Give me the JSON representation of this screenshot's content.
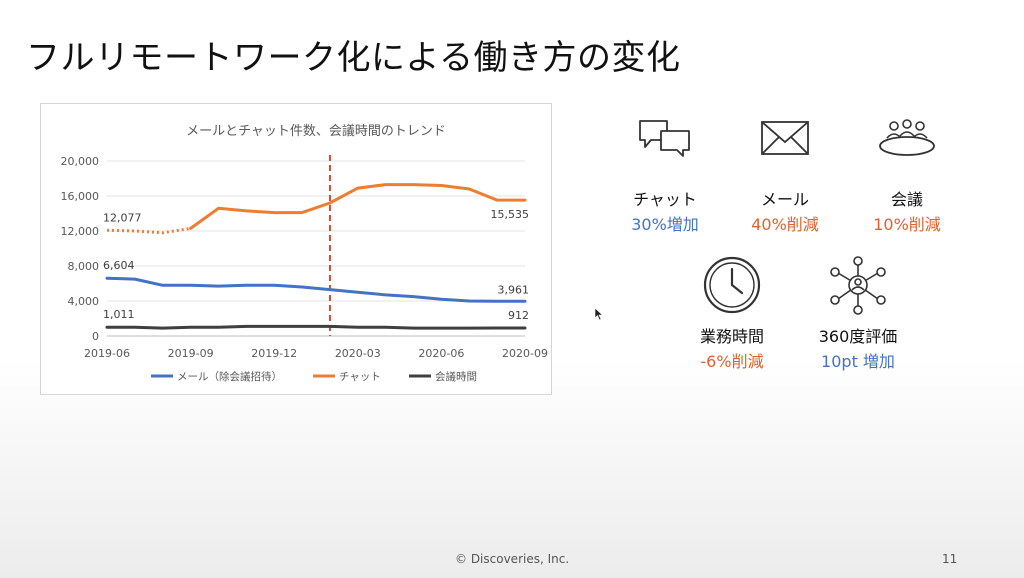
{
  "slide": {
    "title": "フルリモートワーク化による働き方の変化",
    "footer": "© Discoveries, Inc.",
    "page_number": "11"
  },
  "colors": {
    "mail": "#4472c4",
    "chat": "#ed7d31",
    "meeting": "#3f3f3f",
    "increase": "#4472c4",
    "decrease": "#e0622c",
    "marker_line": "#d9482b"
  },
  "chart_data": {
    "type": "line",
    "title": "メールとチャット件数、会議時間のトレンド",
    "x": [
      "2019-06",
      "2019-07",
      "2019-08",
      "2019-09",
      "2019-10",
      "2019-11",
      "2019-12",
      "2020-01",
      "2020-02",
      "2020-03",
      "2020-04",
      "2020-05",
      "2020-06",
      "2020-07",
      "2020-08",
      "2020-09"
    ],
    "x_tick_labels": [
      "2019-06",
      "2019-09",
      "2019-12",
      "2020-03",
      "2020-06",
      "2020-09"
    ],
    "ylim": [
      0,
      20000
    ],
    "y_ticks": [
      "0",
      "4,000",
      "8,000",
      "12,000",
      "16,000",
      "20,000"
    ],
    "y_tick_values": [
      0,
      4000,
      8000,
      12000,
      16000,
      20000
    ],
    "grid": true,
    "legend_position": "bottom",
    "vertical_marker_x": "2020-02",
    "series": [
      {
        "name": "メール（除会議招待）",
        "color": "#4472c4",
        "values": [
          6604,
          6500,
          5800,
          5800,
          5700,
          5800,
          5800,
          5600,
          5300,
          5000,
          4700,
          4500,
          4200,
          4000,
          3961,
          3961
        ],
        "label_first": "6,604",
        "label_last": "3,961"
      },
      {
        "name": "チャット",
        "color": "#ed7d31",
        "values": [
          12077,
          12000,
          11800,
          12300,
          14600,
          14300,
          14100,
          14100,
          15200,
          16900,
          17300,
          17300,
          17200,
          16800,
          15535,
          15535
        ],
        "dotted_until_index": 3,
        "label_first": "12,077",
        "label_last": "15,535"
      },
      {
        "name": "会議時間",
        "color": "#3f3f3f",
        "values": [
          1011,
          1000,
          900,
          1000,
          1000,
          1100,
          1100,
          1100,
          1100,
          1000,
          1000,
          900,
          900,
          900,
          912,
          912
        ],
        "label_first": "1,011",
        "label_last": "912"
      }
    ]
  },
  "metrics": [
    {
      "icon": "chat-bubbles-icon",
      "label": "チャット",
      "value": "30%増加",
      "trend": "increase"
    },
    {
      "icon": "envelope-icon",
      "label": "メール",
      "value": "40%削減",
      "trend": "decrease"
    },
    {
      "icon": "meeting-table-icon",
      "label": "会議",
      "value": "10%削減",
      "trend": "decrease"
    },
    {
      "icon": "clock-icon",
      "label": "業務時間",
      "value": "-6%削減",
      "trend": "decrease"
    },
    {
      "icon": "network-icon",
      "label": "360度評価",
      "value": "10pt 増加",
      "trend": "increase"
    }
  ]
}
